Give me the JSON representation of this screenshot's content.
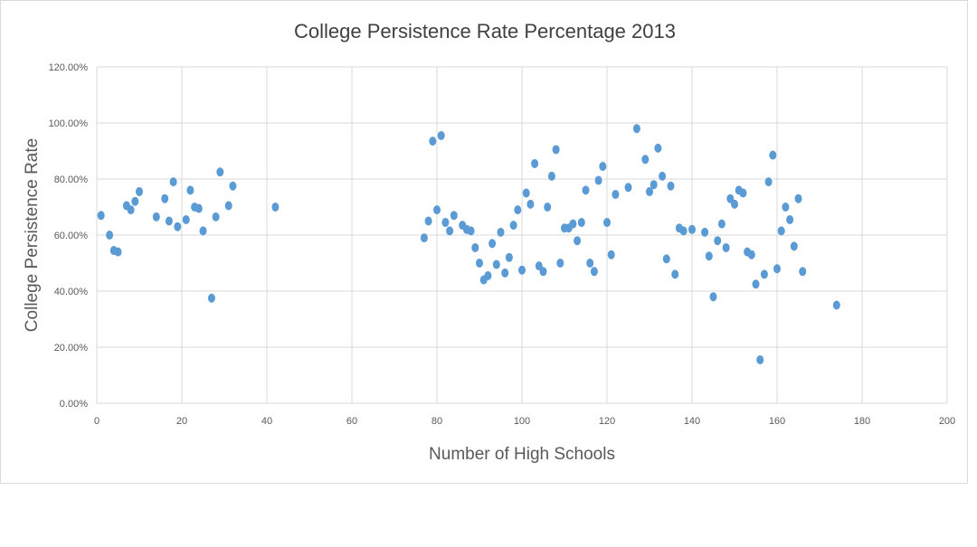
{
  "chart_data": {
    "type": "scatter",
    "title": "College Persistence Rate Percentage 2013",
    "xlabel": "Number of High Schools",
    "ylabel": "College Persistence Rate",
    "xlim": [
      0,
      200
    ],
    "ylim": [
      0,
      1.2
    ],
    "x_ticks": [
      "0",
      "20",
      "40",
      "60",
      "80",
      "100",
      "120",
      "140",
      "160",
      "180",
      "200"
    ],
    "y_ticks": [
      "0.00%",
      "20.00%",
      "40.00%",
      "60.00%",
      "80.00%",
      "100.00%",
      "120.00%"
    ],
    "grid": true,
    "legend": "none",
    "marker_color": "#5b9bd5",
    "points": [
      [
        1,
        0.67
      ],
      [
        3,
        0.6
      ],
      [
        4,
        0.545
      ],
      [
        5,
        0.54
      ],
      [
        7,
        0.705
      ],
      [
        8,
        0.69
      ],
      [
        9,
        0.72
      ],
      [
        10,
        0.755
      ],
      [
        14,
        0.665
      ],
      [
        16,
        0.73
      ],
      [
        17,
        0.65
      ],
      [
        18,
        0.79
      ],
      [
        19,
        0.63
      ],
      [
        21,
        0.655
      ],
      [
        22,
        0.76
      ],
      [
        23,
        0.7
      ],
      [
        24,
        0.695
      ],
      [
        25,
        0.615
      ],
      [
        27,
        0.375
      ],
      [
        28,
        0.665
      ],
      [
        29,
        0.825
      ],
      [
        31,
        0.705
      ],
      [
        32,
        0.775
      ],
      [
        42,
        0.7
      ],
      [
        77,
        0.59
      ],
      [
        78,
        0.65
      ],
      [
        79,
        0.935
      ],
      [
        80,
        0.69
      ],
      [
        81,
        0.955
      ],
      [
        82,
        0.645
      ],
      [
        83,
        0.615
      ],
      [
        84,
        0.67
      ],
      [
        86,
        0.635
      ],
      [
        87,
        0.62
      ],
      [
        88,
        0.615
      ],
      [
        89,
        0.555
      ],
      [
        90,
        0.5
      ],
      [
        91,
        0.44
      ],
      [
        92,
        0.455
      ],
      [
        93,
        0.57
      ],
      [
        94,
        0.495
      ],
      [
        95,
        0.61
      ],
      [
        96,
        0.465
      ],
      [
        97,
        0.52
      ],
      [
        98,
        0.635
      ],
      [
        99,
        0.69
      ],
      [
        100,
        0.475
      ],
      [
        101,
        0.75
      ],
      [
        102,
        0.71
      ],
      [
        103,
        0.855
      ],
      [
        104,
        0.49
      ],
      [
        105,
        0.47
      ],
      [
        106,
        0.7
      ],
      [
        107,
        0.81
      ],
      [
        108,
        0.905
      ],
      [
        109,
        0.5
      ],
      [
        110,
        0.625
      ],
      [
        111,
        0.625
      ],
      [
        112,
        0.64
      ],
      [
        113,
        0.58
      ],
      [
        114,
        0.645
      ],
      [
        115,
        0.76
      ],
      [
        116,
        0.5
      ],
      [
        117,
        0.47
      ],
      [
        118,
        0.795
      ],
      [
        119,
        0.845
      ],
      [
        120,
        0.645
      ],
      [
        121,
        0.53
      ],
      [
        122,
        0.745
      ],
      [
        125,
        0.77
      ],
      [
        127,
        0.98
      ],
      [
        129,
        0.87
      ],
      [
        130,
        0.755
      ],
      [
        131,
        0.78
      ],
      [
        132,
        0.91
      ],
      [
        133,
        0.81
      ],
      [
        134,
        0.515
      ],
      [
        135,
        0.775
      ],
      [
        136,
        0.46
      ],
      [
        137,
        0.625
      ],
      [
        138,
        0.615
      ],
      [
        140,
        0.62
      ],
      [
        143,
        0.61
      ],
      [
        144,
        0.525
      ],
      [
        145,
        0.38
      ],
      [
        146,
        0.58
      ],
      [
        147,
        0.64
      ],
      [
        148,
        0.555
      ],
      [
        149,
        0.73
      ],
      [
        150,
        0.71
      ],
      [
        151,
        0.76
      ],
      [
        152,
        0.75
      ],
      [
        153,
        0.54
      ],
      [
        154,
        0.53
      ],
      [
        155,
        0.425
      ],
      [
        156,
        0.155
      ],
      [
        157,
        0.46
      ],
      [
        158,
        0.79
      ],
      [
        159,
        0.885
      ],
      [
        160,
        0.48
      ],
      [
        161,
        0.615
      ],
      [
        162,
        0.7
      ],
      [
        163,
        0.655
      ],
      [
        164,
        0.56
      ],
      [
        165,
        0.73
      ],
      [
        166,
        0.47
      ],
      [
        174,
        0.35
      ]
    ]
  }
}
